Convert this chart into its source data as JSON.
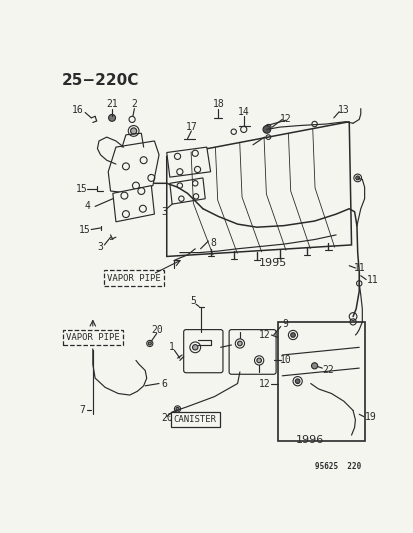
{
  "title": "25−220C",
  "footer": "95625  220",
  "bg_color": "#f5f5f0",
  "fg_color": "#2a2a2a",
  "title_fontsize": 11,
  "label_fontsize": 7,
  "small_fontsize": 5.5,
  "vapor_pipe_text": "VAPOR PIPE",
  "canister_text": "CANISTER",
  "year_1995": "1995",
  "year_1996": "1996"
}
